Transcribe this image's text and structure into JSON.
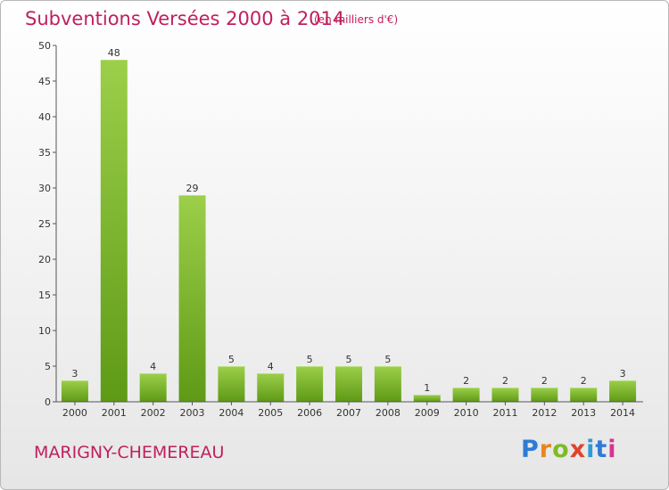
{
  "header": {
    "title": "Subventions Versées 2000 à 2014",
    "subtitle": "(en milliers d'€)"
  },
  "footer": {
    "commune": "MARIGNY-CHEMEREAU",
    "logo": [
      "P",
      "r",
      "o",
      "x",
      "i",
      "t",
      "i"
    ]
  },
  "colors": {
    "accent": "#c01f5d",
    "bar_light": "#9ccf4a",
    "bar_dark": "#5e9a16"
  },
  "chart_data": {
    "type": "bar",
    "title": "Subventions Versées 2000 à 2014",
    "subtitle": "(en milliers d'€)",
    "xlabel": "",
    "ylabel": "",
    "categories": [
      "2000",
      "2001",
      "2002",
      "2003",
      "2004",
      "2005",
      "2006",
      "2007",
      "2008",
      "2009",
      "2010",
      "2011",
      "2012",
      "2013",
      "2014"
    ],
    "values": [
      3,
      48,
      4,
      29,
      5,
      4,
      5,
      5,
      5,
      1,
      2,
      2,
      2,
      2,
      3
    ],
    "ylim": [
      0,
      50
    ],
    "yticks": [
      0,
      5,
      10,
      15,
      20,
      25,
      30,
      35,
      40,
      45,
      50
    ],
    "grid": false,
    "show_value_labels": true
  }
}
